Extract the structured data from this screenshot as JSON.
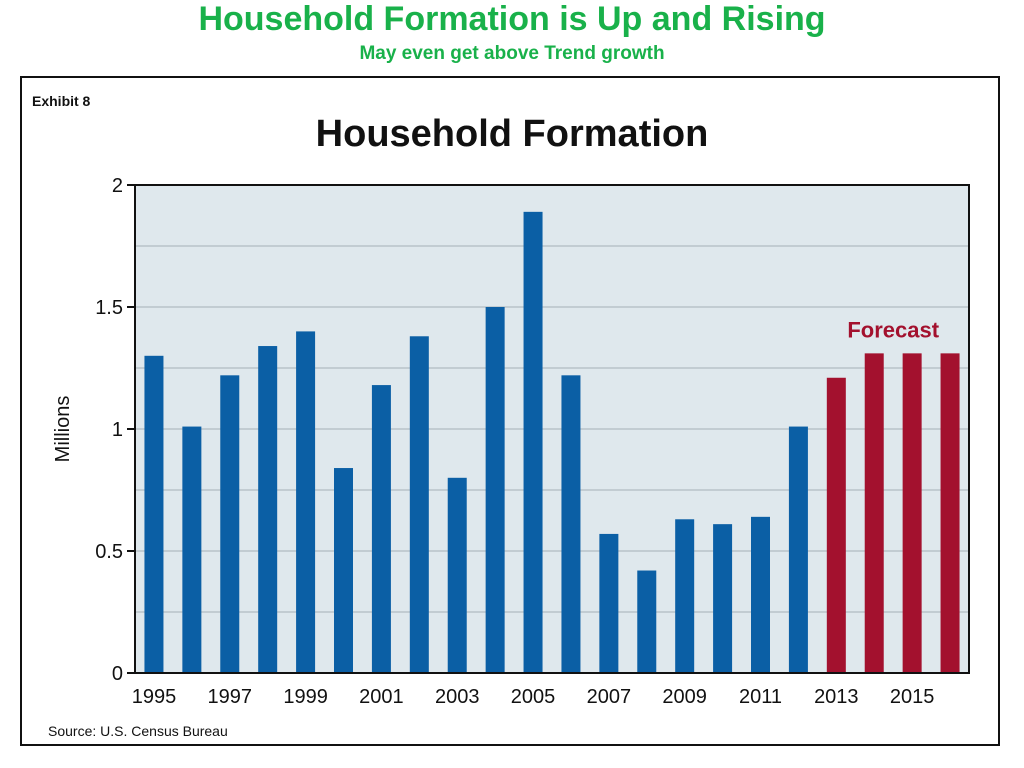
{
  "slide": {
    "title": "Household Formation is Up and Rising",
    "subtitle": "May even get above Trend growth"
  },
  "exhibit_label": "Exhibit 8",
  "source": "Source: U.S. Census Bureau",
  "colors": {
    "heading_green": "#19b14a",
    "actual_bar": "#0b5fa5",
    "forecast_bar": "#a3112e",
    "plot_bg": "#dfe8ed"
  },
  "chart_data": {
    "type": "bar",
    "title": "Household Formation",
    "xlabel": "",
    "ylabel": "Millions",
    "ylim": [
      0,
      2
    ],
    "yticks": [
      "0",
      "0.5",
      "1",
      "1.5",
      "2"
    ],
    "grid": true,
    "categories": [
      "1995",
      "1996",
      "1997",
      "1998",
      "1999",
      "2000",
      "2001",
      "2002",
      "2003",
      "2004",
      "2005",
      "2006",
      "2007",
      "2008",
      "2009",
      "2010",
      "2011",
      "2012",
      "2013",
      "2014",
      "2015",
      "2016"
    ],
    "xtick_labels": [
      "1995",
      "1997",
      "1999",
      "2001",
      "2003",
      "2005",
      "2007",
      "2009",
      "2011",
      "2013",
      "2015"
    ],
    "values": [
      1.3,
      1.01,
      1.22,
      1.34,
      1.4,
      0.84,
      1.18,
      1.38,
      0.8,
      1.5,
      1.89,
      1.22,
      0.57,
      0.42,
      0.63,
      0.61,
      0.64,
      1.01,
      1.21,
      1.31,
      1.31,
      1.31
    ],
    "forecast_start_index": 18,
    "annotation": "Forecast"
  }
}
